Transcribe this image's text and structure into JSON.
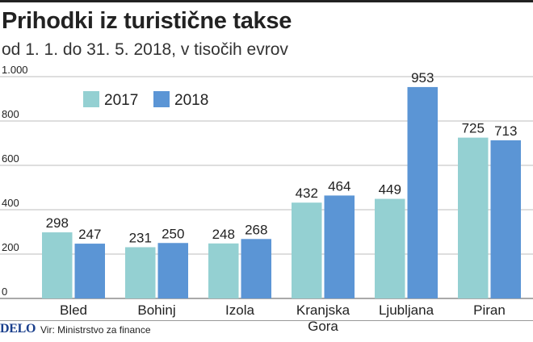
{
  "title": "Prihodki iz turistične takse",
  "subtitle": "od 1. 1. do 31. 5. 2018, v tisočih evrov",
  "logo": "DELO",
  "source": "Vir: Ministrstvo za finance",
  "colors": {
    "series_2017": "#94d0d2",
    "series_2018": "#5b95d5",
    "grid": "#bdbdbd",
    "axis_text": "#222222"
  },
  "chart_data": {
    "type": "bar",
    "categories": [
      "Bled",
      "Bohinj",
      "Izola",
      "Kranjska Gora",
      "Ljubljana",
      "Piran"
    ],
    "category_lines": [
      [
        "Bled"
      ],
      [
        "Bohinj"
      ],
      [
        "Izola"
      ],
      [
        "Kranjska",
        "Gora"
      ],
      [
        "Ljubljana"
      ],
      [
        "Piran"
      ]
    ],
    "series": [
      {
        "name": "2017",
        "values": [
          298,
          231,
          248,
          432,
          449,
          725
        ]
      },
      {
        "name": "2018",
        "values": [
          247,
          250,
          268,
          464,
          953,
          713
        ]
      }
    ],
    "ylim": [
      0,
      1000
    ],
    "yticks": [
      0,
      200,
      400,
      600,
      800,
      1000
    ],
    "ytick_labels": [
      "0",
      "200",
      "400",
      "600",
      "800",
      "1.000"
    ],
    "grid": true,
    "legend_position": "top-left",
    "data_labels": true
  }
}
